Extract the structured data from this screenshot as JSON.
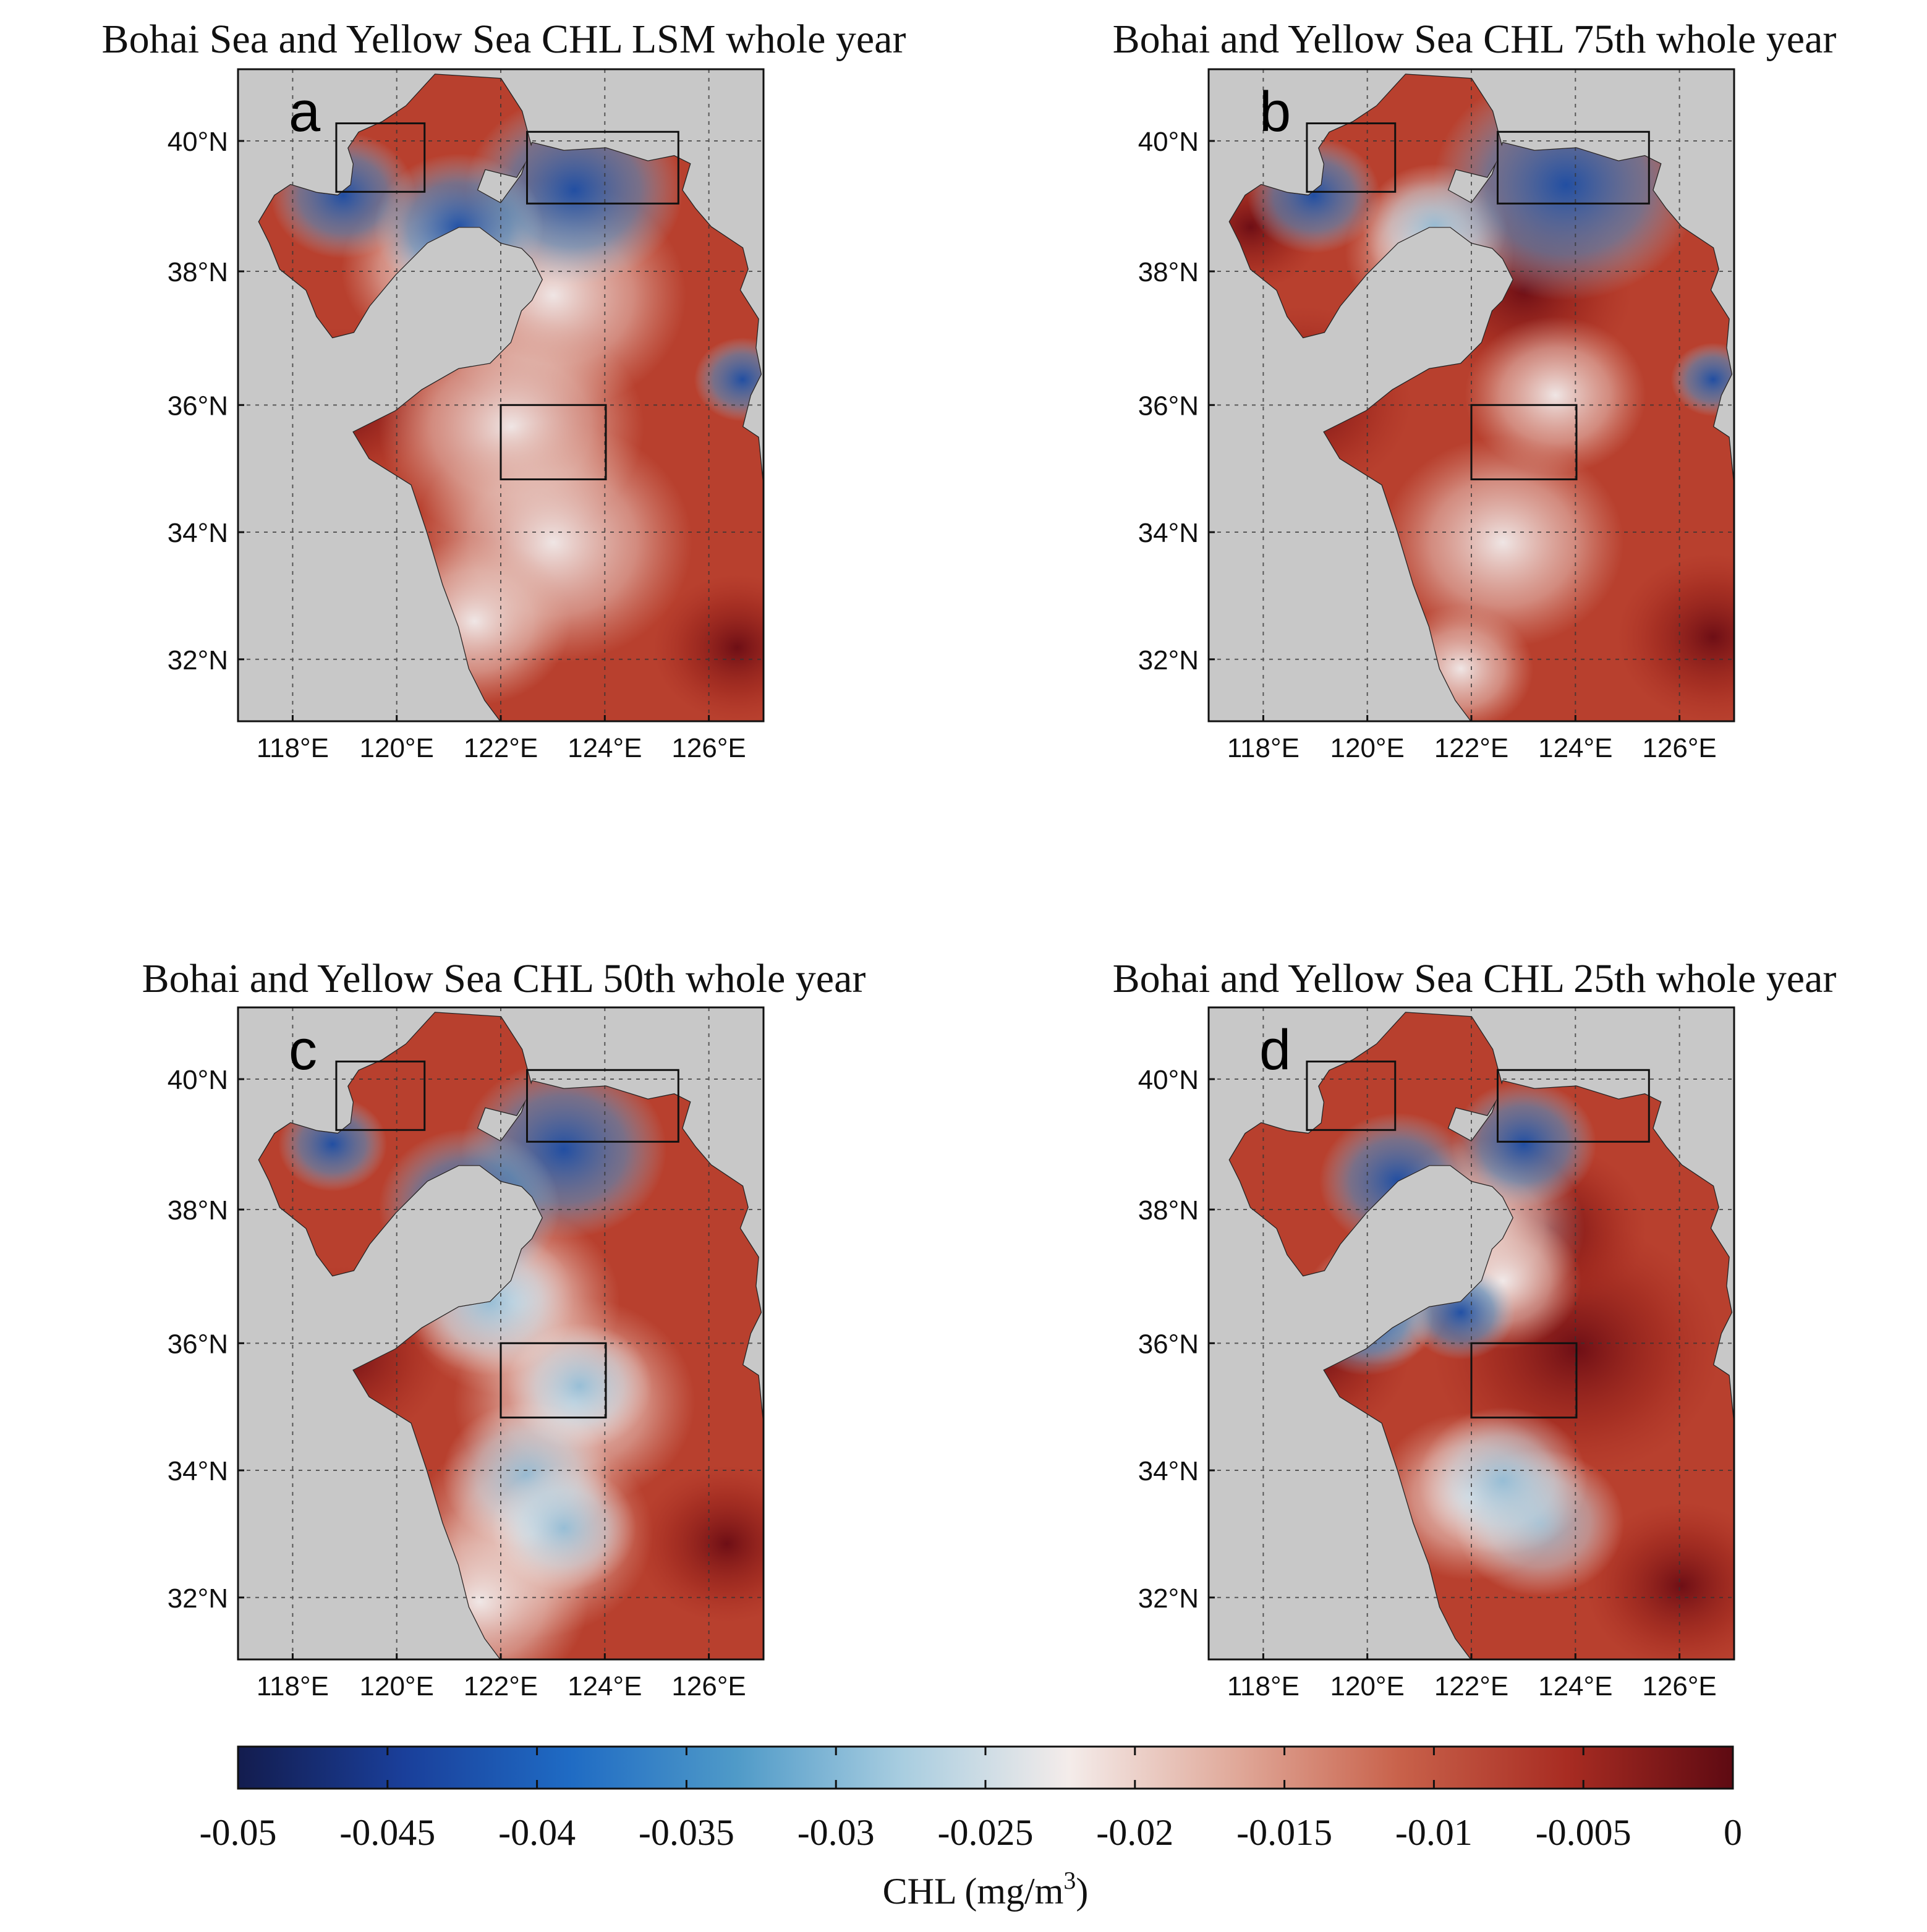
{
  "figure": {
    "colorbar": {
      "min": -0.05,
      "max": 0,
      "ticks": [
        "-0.05",
        "-0.045",
        "-0.04",
        "-0.035",
        "-0.03",
        "-0.025",
        "-0.02",
        "-0.015",
        "-0.01",
        "-0.005",
        "0"
      ],
      "label_main": "CHL (mg/m",
      "label_sup": "3",
      "label_end": ")",
      "colors": [
        "#131c4e",
        "#1a3f9a",
        "#1f6bc4",
        "#4f9ac8",
        "#a8cde0",
        "#f4ecea",
        "#e0a99a",
        "#c8614a",
        "#a82c22",
        "#5e0a12"
      ]
    },
    "lon_ticks": [
      "118°E",
      "120°E",
      "122°E",
      "124°E",
      "126°E"
    ],
    "lat_ticks": [
      "40°N",
      "38°N",
      "36°N",
      "34°N",
      "32°N"
    ],
    "land_color": "#c8c8c8",
    "panels": [
      {
        "letter": "a",
        "title": "Bohai Sea and Yellow Sea CHL LSM whole year"
      },
      {
        "letter": "b",
        "title": "Bohai and Yellow Sea CHL 75th whole year"
      },
      {
        "letter": "c",
        "title": "Bohai and Yellow Sea CHL 50th whole year"
      },
      {
        "letter": "d",
        "title": "Bohai and Yellow Sea CHL 25th whole year"
      }
    ]
  }
}
